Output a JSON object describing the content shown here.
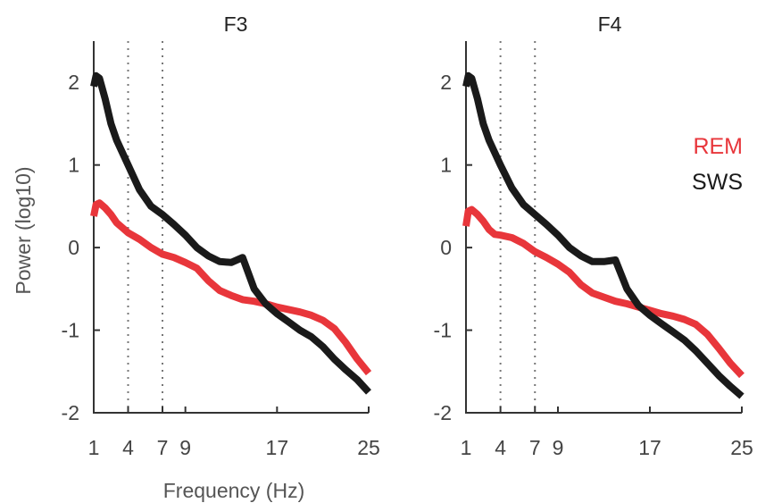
{
  "chart_data": [
    {
      "type": "line",
      "title": "F3",
      "xlabel": "Frequency (Hz)",
      "ylabel": "Power (log10)",
      "xlim": [
        1,
        25
      ],
      "ylim": [
        -2,
        2.5
      ],
      "x_ticks": [
        1,
        4,
        7,
        9,
        17,
        25
      ],
      "y_ticks": [
        -2,
        -1,
        0,
        1,
        2
      ],
      "vlines": [
        4,
        7
      ],
      "grid": false,
      "series": [
        {
          "name": "REM",
          "color": "#e8363b",
          "x": [
            1,
            1.2,
            1.5,
            2,
            2.5,
            3,
            3.5,
            4,
            5,
            6,
            7,
            8,
            9,
            10,
            11,
            12,
            13,
            14,
            15,
            16,
            17,
            18,
            19,
            20,
            21,
            22,
            23,
            24,
            25
          ],
          "y": [
            0.38,
            0.52,
            0.54,
            0.48,
            0.4,
            0.3,
            0.24,
            0.18,
            0.1,
            0.0,
            -0.08,
            -0.12,
            -0.18,
            -0.25,
            -0.4,
            -0.52,
            -0.58,
            -0.63,
            -0.65,
            -0.68,
            -0.72,
            -0.75,
            -0.78,
            -0.82,
            -0.88,
            -0.98,
            -1.15,
            -1.35,
            -1.52
          ]
        },
        {
          "name": "SWS",
          "color": "#1a1a1a",
          "x": [
            1,
            1.2,
            1.5,
            2,
            2.5,
            3,
            3.5,
            4,
            5,
            6,
            7,
            8,
            9,
            10,
            11,
            12,
            13,
            14,
            15,
            16,
            17,
            18,
            19,
            20,
            21,
            22,
            23,
            24,
            25
          ],
          "y": [
            1.95,
            2.08,
            2.05,
            1.8,
            1.5,
            1.3,
            1.15,
            1.0,
            0.7,
            0.5,
            0.4,
            0.28,
            0.15,
            0.0,
            -0.1,
            -0.17,
            -0.18,
            -0.12,
            -0.5,
            -0.68,
            -0.8,
            -0.9,
            -1.0,
            -1.08,
            -1.2,
            -1.35,
            -1.48,
            -1.6,
            -1.75
          ]
        }
      ]
    },
    {
      "type": "line",
      "title": "F4",
      "xlabel": "",
      "ylabel": "",
      "xlim": [
        1,
        25
      ],
      "ylim": [
        -2,
        2.5
      ],
      "x_ticks": [
        1,
        4,
        7,
        9,
        17,
        25
      ],
      "y_ticks": [
        -2,
        -1,
        0,
        1,
        2
      ],
      "vlines": [
        4,
        7
      ],
      "grid": false,
      "legend": "right",
      "series": [
        {
          "name": "REM",
          "color": "#e8363b",
          "x": [
            1,
            1.2,
            1.5,
            2,
            2.5,
            3,
            3.5,
            4,
            5,
            6,
            7,
            8,
            9,
            10,
            11,
            12,
            13,
            14,
            15,
            16,
            17,
            18,
            19,
            20,
            21,
            22,
            23,
            24,
            25
          ],
          "y": [
            0.26,
            0.44,
            0.46,
            0.4,
            0.32,
            0.22,
            0.16,
            0.15,
            0.12,
            0.05,
            -0.05,
            -0.12,
            -0.2,
            -0.3,
            -0.45,
            -0.55,
            -0.6,
            -0.65,
            -0.68,
            -0.72,
            -0.76,
            -0.8,
            -0.83,
            -0.87,
            -0.93,
            -1.05,
            -1.22,
            -1.4,
            -1.55
          ]
        },
        {
          "name": "SWS",
          "color": "#1a1a1a",
          "x": [
            1,
            1.2,
            1.5,
            2,
            2.5,
            3,
            3.5,
            4,
            5,
            6,
            7,
            8,
            9,
            10,
            11,
            12,
            13,
            14,
            15,
            16,
            17,
            18,
            19,
            20,
            21,
            22,
            23,
            24,
            25
          ],
          "y": [
            1.95,
            2.08,
            2.05,
            1.8,
            1.5,
            1.3,
            1.15,
            1.0,
            0.72,
            0.52,
            0.4,
            0.28,
            0.15,
            0.0,
            -0.1,
            -0.17,
            -0.17,
            -0.15,
            -0.5,
            -0.7,
            -0.82,
            -0.92,
            -1.02,
            -1.12,
            -1.25,
            -1.4,
            -1.55,
            -1.68,
            -1.8
          ]
        }
      ]
    }
  ],
  "legend": {
    "items": [
      {
        "label": "REM",
        "color": "#e8363b"
      },
      {
        "label": "SWS",
        "color": "#1a1a1a"
      }
    ]
  }
}
